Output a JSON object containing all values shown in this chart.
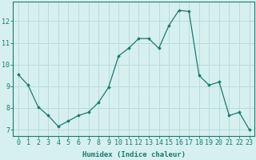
{
  "x": [
    0,
    1,
    2,
    3,
    4,
    5,
    6,
    7,
    8,
    9,
    10,
    11,
    12,
    13,
    14,
    15,
    16,
    17,
    18,
    19,
    20,
    21,
    22,
    23
  ],
  "y": [
    9.55,
    9.05,
    8.05,
    7.65,
    7.15,
    7.4,
    7.65,
    7.8,
    8.25,
    8.95,
    10.4,
    10.75,
    11.2,
    11.2,
    10.75,
    11.8,
    12.5,
    12.45,
    9.5,
    9.05,
    9.2,
    7.65,
    7.8,
    7.0
  ],
  "line_color": "#1a7a6e",
  "marker": "D",
  "marker_size": 1.8,
  "bg_color": "#d6f0f0",
  "grid_color": "#b8d8d8",
  "xlabel": "Humidex (Indice chaleur)",
  "ylabel_ticks": [
    7,
    8,
    9,
    10,
    11,
    12
  ],
  "xlim": [
    -0.5,
    23.5
  ],
  "ylim": [
    6.7,
    12.9
  ],
  "xlabel_fontsize": 6.5,
  "tick_fontsize": 6.0,
  "tick_color": "#1a7a6e",
  "axis_color": "#1a7a6e",
  "linewidth": 0.9
}
